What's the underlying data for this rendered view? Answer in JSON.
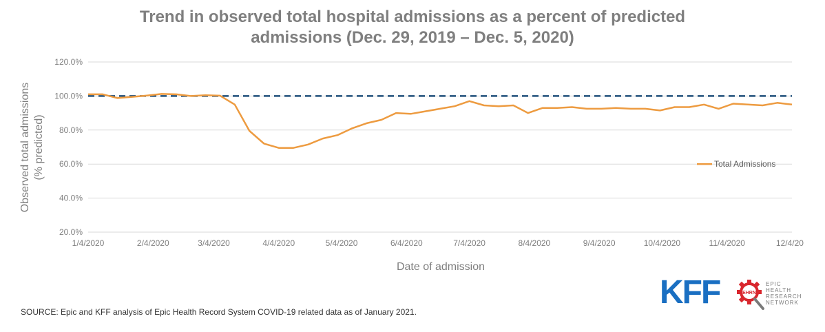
{
  "title": {
    "line1": "Trend in observed total hospital admissions as a percent of predicted",
    "line2": "admissions (Dec. 29, 2019 – Dec. 5, 2020)"
  },
  "source": "SOURCE: Epic and KFF analysis of Epic Health Record System COVID-19 related data as of January 2021.",
  "logos": {
    "kff": "KFF",
    "ehrn_badge": "EHRN",
    "ehrn_lines": [
      "EPIC",
      "HEALTH",
      "RESEARCH",
      "NETWORK"
    ]
  },
  "colors": {
    "series": "#ed9b40",
    "reference": "#1f4e79",
    "grid": "#d9d9d9",
    "axis_text": "#7f7f7f",
    "kff_blue": "#1a6fc2",
    "ehrn_red": "#d9272e"
  },
  "chart_data": {
    "type": "line",
    "xlabel": "Date of admission",
    "ylabel_lines": [
      "Observed total admissions",
      "(% predicted)"
    ],
    "ylim": [
      20,
      120
    ],
    "yticks": [
      20,
      40,
      60,
      80,
      100,
      120
    ],
    "ytick_labels": [
      "20.0%",
      "40.0%",
      "60.0%",
      "80.0%",
      "100.0%",
      "120.0%"
    ],
    "xlim": [
      "2020-01-04",
      "2020-12-05"
    ],
    "xticks": [
      "2020-01-04",
      "2020-02-04",
      "2020-03-04",
      "2020-04-04",
      "2020-05-04",
      "2020-06-04",
      "2020-07-04",
      "2020-08-04",
      "2020-09-04",
      "2020-10-04",
      "2020-11-04",
      "2020-12-04"
    ],
    "xtick_labels": [
      "1/4/2020",
      "2/4/2020",
      "3/4/2020",
      "4/4/2020",
      "5/4/2020",
      "6/4/2020",
      "7/4/2020",
      "8/4/2020",
      "9/4/2020",
      "10/4/2020",
      "11/4/2020",
      "12/4/20"
    ],
    "grid": true,
    "legend": "right",
    "reference_line": {
      "y": 100,
      "style": "dashed"
    },
    "series": [
      {
        "name": "Total Admissions",
        "x": [
          "2020-01-04",
          "2020-01-11",
          "2020-01-18",
          "2020-01-25",
          "2020-02-01",
          "2020-02-08",
          "2020-02-15",
          "2020-02-22",
          "2020-02-29",
          "2020-03-07",
          "2020-03-14",
          "2020-03-21",
          "2020-03-28",
          "2020-04-04",
          "2020-04-11",
          "2020-04-18",
          "2020-04-25",
          "2020-05-02",
          "2020-05-09",
          "2020-05-16",
          "2020-05-23",
          "2020-05-30",
          "2020-06-06",
          "2020-06-13",
          "2020-06-20",
          "2020-06-27",
          "2020-07-04",
          "2020-07-11",
          "2020-07-18",
          "2020-07-25",
          "2020-08-01",
          "2020-08-08",
          "2020-08-15",
          "2020-08-22",
          "2020-08-29",
          "2020-09-05",
          "2020-09-12",
          "2020-09-19",
          "2020-09-26",
          "2020-10-03",
          "2020-10-10",
          "2020-10-17",
          "2020-10-24",
          "2020-10-31",
          "2020-11-07",
          "2020-11-14",
          "2020-11-21",
          "2020-11-28",
          "2020-12-05"
        ],
        "y": [
          101,
          101,
          98.8,
          99.5,
          100.3,
          101.2,
          101,
          100,
          100.5,
          100.2,
          95,
          79.5,
          72,
          69.5,
          69.5,
          71.5,
          75,
          77,
          81,
          84,
          86,
          90,
          89.5,
          91,
          92.5,
          94,
          97,
          94.5,
          94,
          94.5,
          90,
          93,
          93,
          93.5,
          92.5,
          92.5,
          93,
          92.5,
          92.5,
          91.5,
          93.5,
          93.5,
          95,
          92.5,
          95.5,
          95,
          94.5,
          96,
          95
        ]
      }
    ]
  }
}
